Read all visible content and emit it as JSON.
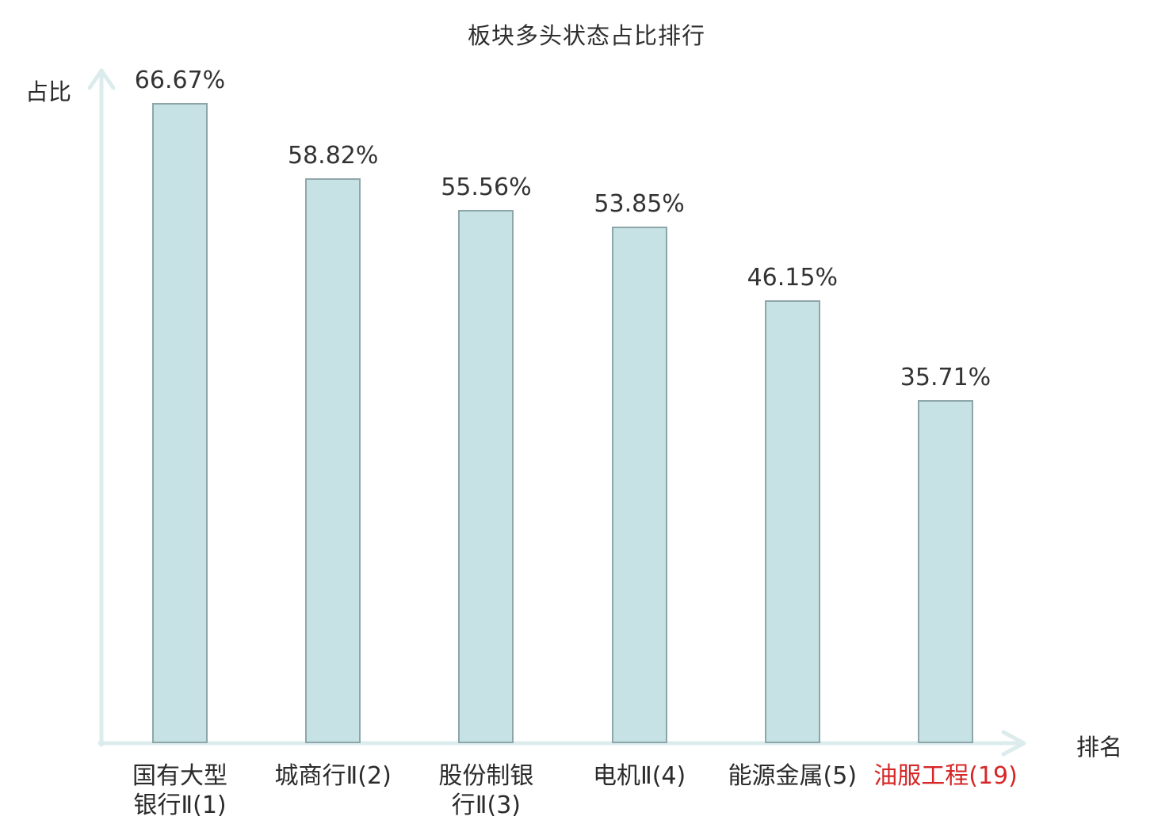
{
  "title": "板块多头状态占比排行",
  "y_axis_label": "占比",
  "x_axis_label": "排名",
  "colors": {
    "bar_fill": "#c6e2e5",
    "bar_border": "#8ea6a9",
    "axis": "#dcecec",
    "text": "#2b2b2b",
    "highlight": "#d62728",
    "background": "#ffffff"
  },
  "chart_data": {
    "type": "bar",
    "title": "板块多头状态占比排行",
    "xlabel": "排名",
    "ylabel": "占比",
    "categories": [
      "国有大型银行Ⅱ(1)",
      "城商行Ⅱ(2)",
      "股份制银行Ⅱ(3)",
      "电机Ⅱ(4)",
      "能源金属(5)",
      "油服工程(19)"
    ],
    "category_lines": [
      [
        "国有大型",
        "银行Ⅱ(1)"
      ],
      [
        "城商行Ⅱ(2)"
      ],
      [
        "股份制银",
        "行Ⅱ(3)"
      ],
      [
        "电机Ⅱ(4)"
      ],
      [
        "能源金属(5)"
      ],
      [
        "油服工程(19)"
      ]
    ],
    "values": [
      66.67,
      58.82,
      55.56,
      53.85,
      46.15,
      35.71
    ],
    "value_labels": [
      "66.67%",
      "58.82%",
      "55.56%",
      "53.85%",
      "46.15%",
      "35.71%"
    ],
    "highlight_index": 5,
    "ylim": [
      0,
      77.5
    ],
    "grid": false,
    "legend": null
  }
}
